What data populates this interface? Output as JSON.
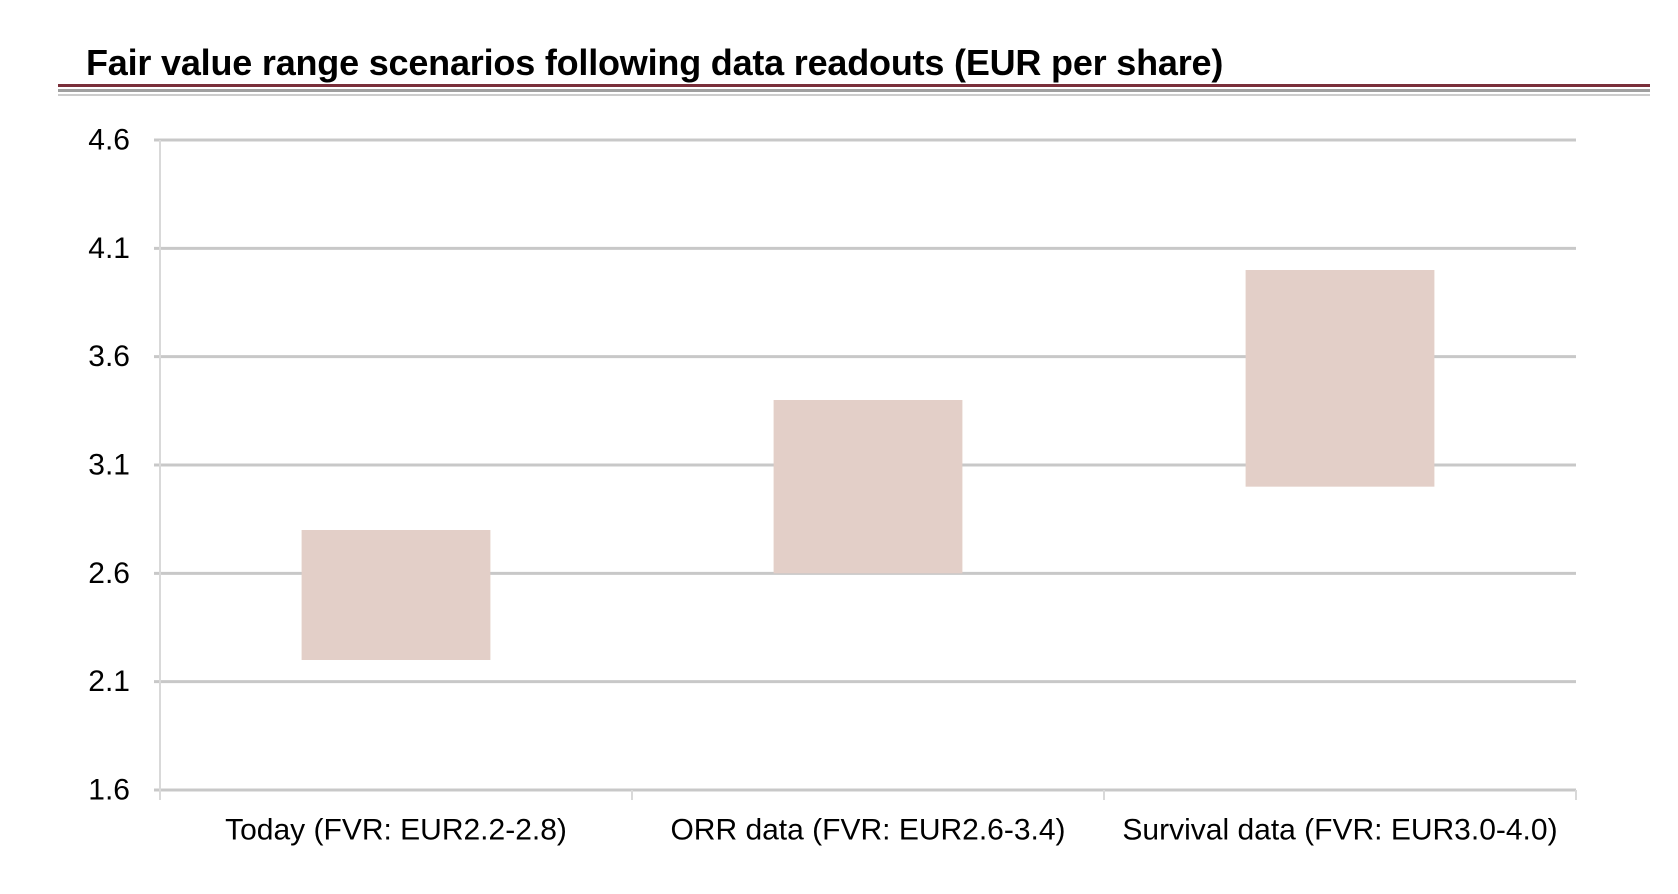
{
  "chart_data": {
    "type": "bar",
    "subtype": "floating-range",
    "title": "Fair value range scenarios following data readouts (EUR per share)",
    "xlabel": "",
    "ylabel": "",
    "categories": [
      "Today (FVR: EUR2.2-2.8)",
      "ORR data (FVR: EUR2.6-3.4)",
      "Survival data (FVR: EUR3.0-4.0)"
    ],
    "ranges": [
      {
        "low": 2.2,
        "high": 2.8
      },
      {
        "low": 2.6,
        "high": 3.4
      },
      {
        "low": 3.0,
        "high": 4.0
      }
    ],
    "ylim": [
      1.6,
      4.6
    ],
    "yticks": [
      1.6,
      2.1,
      2.6,
      3.1,
      3.6,
      4.1,
      4.6
    ],
    "ytick_labels": [
      "1.6",
      "2.1",
      "2.6",
      "3.1",
      "3.6",
      "4.1",
      "4.6"
    ],
    "grid": true,
    "legend": "none",
    "colors": {
      "bar": "#e3cfc8",
      "grid": "#c8c8c8",
      "axis": "#d9d9d9",
      "rule_dark": "#7a2f3a",
      "rule_grey": "#a0a0a0"
    }
  }
}
